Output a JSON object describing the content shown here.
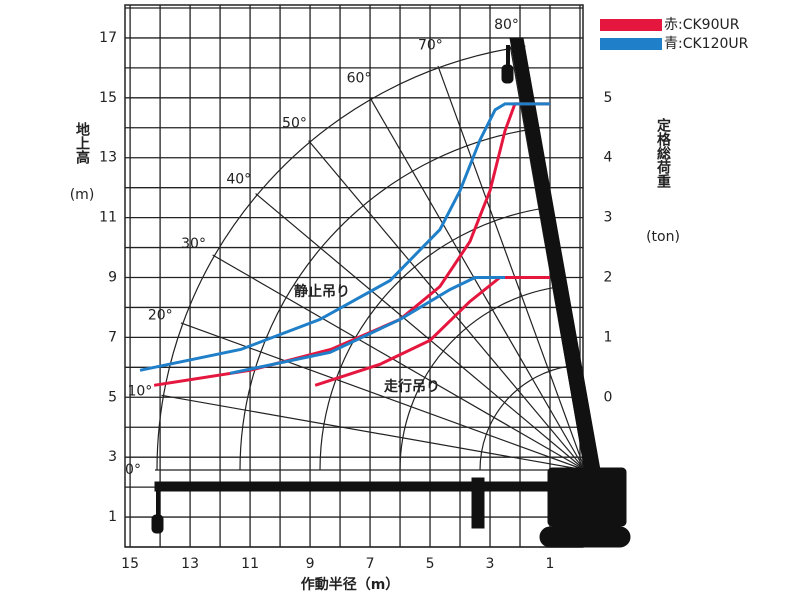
{
  "chart_data": {
    "type": "line",
    "x_label": "作動半径（m）",
    "y_label": "地上高",
    "y_unit": "(m)",
    "y2_label": "定格総荷重",
    "y2_unit": "(ton)",
    "xlim": [
      15.17,
      -0.1
    ],
    "xticks": [
      15,
      13,
      11,
      9,
      7,
      5,
      3,
      1
    ],
    "ylim": [
      0,
      18.1
    ],
    "yticks": [
      1,
      3,
      5,
      7,
      9,
      11,
      13,
      15,
      17
    ],
    "y2lim": [
      -2.5,
      6.55
    ],
    "y2ticks": [
      0,
      1,
      2,
      3,
      4,
      5
    ],
    "grid": true,
    "xminor_grid": [
      14,
      12,
      10,
      8,
      6,
      4,
      2,
      0
    ],
    "yminor_grid": [
      0,
      2,
      4,
      6,
      8,
      10,
      12,
      14,
      16,
      18
    ],
    "boom_angles": [
      {
        "value": 0,
        "label": "0°"
      },
      {
        "value": 10,
        "label": "10°"
      },
      {
        "value": 20,
        "label": "20°"
      },
      {
        "value": 30,
        "label": "30°"
      },
      {
        "value": 40,
        "label": "40°"
      },
      {
        "value": 50,
        "label": "50°"
      },
      {
        "value": 60,
        "label": "60°"
      },
      {
        "value": 70,
        "label": "70°"
      },
      {
        "value": 80,
        "label": "80°"
      }
    ],
    "annotations": [
      "静止吊り",
      "走行吊り"
    ],
    "series": [
      {
        "name": "赤:CK90UR",
        "color": "#e5173f",
        "axis": "y2",
        "curves": [
          {
            "x": [
              14.2,
              11,
              8.3,
              6,
              4.67,
              3.67,
              3,
              2.5,
              2.17,
              1
            ],
            "values": [
              0.2,
              0.45,
              0.8,
              1.3,
              1.85,
              2.6,
              3.45,
              4.45,
              4.9,
              4.9
            ]
          },
          {
            "x": [
              8.83,
              6.67,
              5,
              3.67,
              2.67,
              1
            ],
            "values": [
              0.2,
              0.55,
              0.95,
              1.6,
              2,
              2
            ]
          }
        ]
      },
      {
        "name": "青:CK120UR",
        "color": "#1f7fc8",
        "axis": "y2",
        "curves": [
          {
            "x": [
              14.67,
              11.3,
              8.67,
              6.33,
              4.67,
              4,
              3.33,
              2.83,
              2.5,
              1
            ],
            "values": [
              0.45,
              0.8,
              1.3,
              1.95,
              2.8,
              3.45,
              4.3,
              4.8,
              4.9,
              4.9
            ]
          },
          {
            "x": [
              11.67,
              8.33,
              6,
              4.33,
              3.5,
              2.5
            ],
            "values": [
              0.4,
              0.75,
              1.3,
              1.8,
              2,
              2
            ]
          }
        ]
      }
    ]
  }
}
